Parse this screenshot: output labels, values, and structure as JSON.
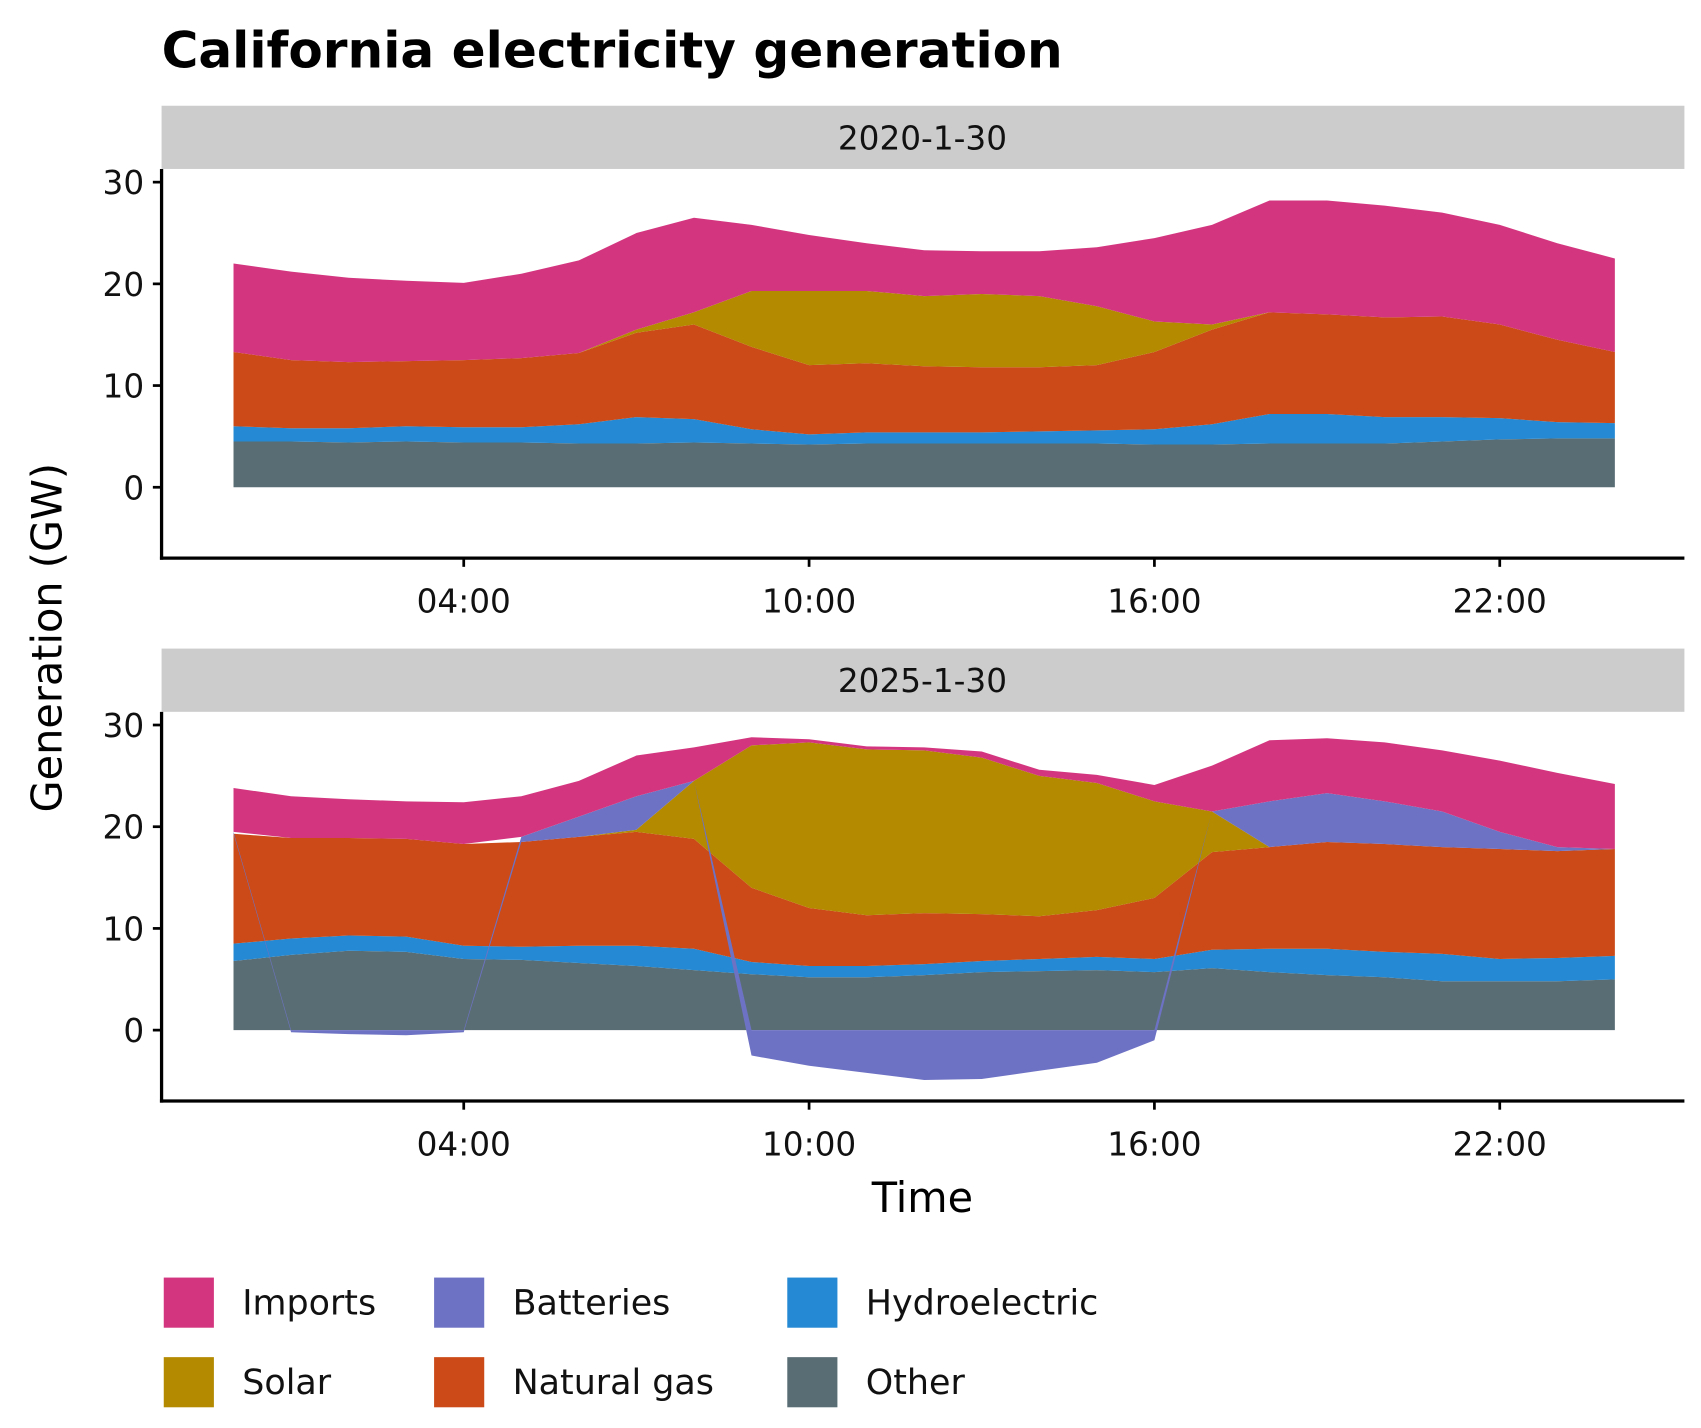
{
  "chart_data": {
    "type": "area",
    "stacked": true,
    "title": "California electricity generation",
    "xlabel": "Time",
    "ylabel": "Generation (GW)",
    "x_tick_labels": [
      "04:00",
      "10:00",
      "16:00",
      "22:00"
    ],
    "y_tick_labels": [
      "0",
      "10",
      "20",
      "30"
    ],
    "ylim": [
      -7,
      31.3
    ],
    "grid": false,
    "legend_position": "bottom",
    "colors": {
      "Imports": "#D3367F",
      "Batteries": "#6E72C4",
      "Hydroelectric": "#2589D3",
      "Solar": "#B38A00",
      "Natural gas": "#CB4A17",
      "Other": "#596E74"
    },
    "legend": [
      "Imports",
      "Batteries",
      "Hydroelectric",
      "Solar",
      "Natural gas",
      "Other"
    ],
    "x": [
      "00:00",
      "01:00",
      "02:00",
      "03:00",
      "04:00",
      "05:00",
      "06:00",
      "07:00",
      "08:00",
      "09:00",
      "10:00",
      "11:00",
      "12:00",
      "13:00",
      "14:00",
      "15:00",
      "16:00",
      "17:00",
      "18:00",
      "19:00",
      "20:00",
      "21:00",
      "22:00",
      "23:00",
      "24:00"
    ],
    "panels": [
      {
        "label": "2020-1-30",
        "series": [
          {
            "name": "Other",
            "values": [
              4.5,
              4.5,
              4.4,
              4.5,
              4.4,
              4.4,
              4.3,
              4.3,
              4.4,
              4.3,
              4.2,
              4.3,
              4.3,
              4.3,
              4.3,
              4.3,
              4.2,
              4.2,
              4.3,
              4.3,
              4.3,
              4.5,
              4.7,
              4.8,
              4.8
            ]
          },
          {
            "name": "Hydroelectric",
            "values": [
              1.5,
              1.3,
              1.4,
              1.5,
              1.5,
              1.5,
              1.9,
              2.6,
              2.3,
              1.4,
              1.0,
              1.1,
              1.1,
              1.1,
              1.2,
              1.3,
              1.5,
              2.0,
              2.9,
              2.9,
              2.6,
              2.4,
              2.1,
              1.6,
              1.5
            ]
          },
          {
            "name": "Natural gas",
            "values": [
              7.3,
              6.7,
              6.5,
              6.4,
              6.6,
              6.8,
              7.0,
              8.3,
              9.3,
              8.1,
              6.8,
              6.8,
              6.5,
              6.4,
              6.3,
              6.4,
              7.6,
              9.3,
              10.0,
              9.8,
              9.8,
              9.9,
              9.2,
              8.1,
              7.0
            ]
          },
          {
            "name": "Solar",
            "values": [
              0,
              0,
              0,
              0,
              0,
              0,
              0,
              0.3,
              1.2,
              5.5,
              7.3,
              7.1,
              6.9,
              7.2,
              7.0,
              5.8,
              3.0,
              0.5,
              0,
              0,
              0,
              0,
              0,
              0,
              0
            ]
          },
          {
            "name": "Batteries",
            "values": [
              0,
              0,
              0,
              0,
              0,
              0,
              0,
              0,
              0,
              0,
              0,
              0,
              0,
              0,
              0,
              0,
              0,
              0,
              0,
              0,
              0,
              0,
              0,
              0,
              0
            ]
          },
          {
            "name": "Imports",
            "values": [
              8.7,
              8.7,
              8.3,
              7.9,
              7.6,
              8.3,
              9.1,
              9.5,
              9.3,
              6.5,
              5.5,
              4.7,
              4.5,
              4.2,
              4.4,
              5.8,
              8.2,
              9.8,
              11.0,
              11.2,
              11.0,
              10.2,
              9.8,
              9.5,
              9.2
            ]
          }
        ]
      },
      {
        "label": "2025-1-30",
        "series": [
          {
            "name": "Other",
            "values": [
              6.8,
              7.4,
              7.8,
              7.7,
              7.0,
              6.9,
              6.6,
              6.3,
              5.9,
              5.5,
              5.2,
              5.2,
              5.4,
              5.7,
              5.8,
              5.9,
              5.7,
              6.1,
              5.7,
              5.4,
              5.2,
              4.8,
              4.8,
              4.8,
              5.0
            ]
          },
          {
            "name": "Hydroelectric",
            "values": [
              1.7,
              1.6,
              1.5,
              1.5,
              1.3,
              1.3,
              1.7,
              2.0,
              2.1,
              1.2,
              1.1,
              1.1,
              1.1,
              1.1,
              1.2,
              1.3,
              1.3,
              1.8,
              2.3,
              2.6,
              2.5,
              2.7,
              2.2,
              2.3,
              2.3
            ]
          },
          {
            "name": "Natural gas",
            "values": [
              10.8,
              9.9,
              9.6,
              9.6,
              10.0,
              10.3,
              10.7,
              11.2,
              10.8,
              7.3,
              5.7,
              5.0,
              5.0,
              4.6,
              4.2,
              4.6,
              6.0,
              9.6,
              10.0,
              10.5,
              10.6,
              10.5,
              10.8,
              10.5,
              10.5
            ]
          },
          {
            "name": "Solar",
            "values": [
              0,
              0,
              0,
              0,
              0,
              0,
              0,
              0.2,
              5.7,
              14.0,
              16.3,
              16.3,
              16.0,
              15.4,
              13.8,
              12.5,
              9.5,
              4.0,
              0,
              0,
              0,
              0,
              0,
              0,
              0
            ]
          },
          {
            "name": "Batteries",
            "values": [
              0.2,
              -0.2,
              -0.4,
              -0.5,
              -0.2,
              0.5,
              2.0,
              3.3,
              0,
              -2.5,
              -3.5,
              -4.2,
              -4.9,
              -4.8,
              -4.0,
              -3.2,
              -1.0,
              0,
              4.5,
              4.8,
              4.2,
              3.5,
              1.7,
              0.4,
              0
            ]
          },
          {
            "name": "Imports",
            "values": [
              4.3,
              4.1,
              3.8,
              3.7,
              4.1,
              4.0,
              3.5,
              4.0,
              3.3,
              0.8,
              0.3,
              0.3,
              0.3,
              0.6,
              0.6,
              0.8,
              1.6,
              4.5,
              6.0,
              5.4,
              5.8,
              6.0,
              7.0,
              7.3,
              6.4
            ]
          }
        ]
      }
    ]
  }
}
